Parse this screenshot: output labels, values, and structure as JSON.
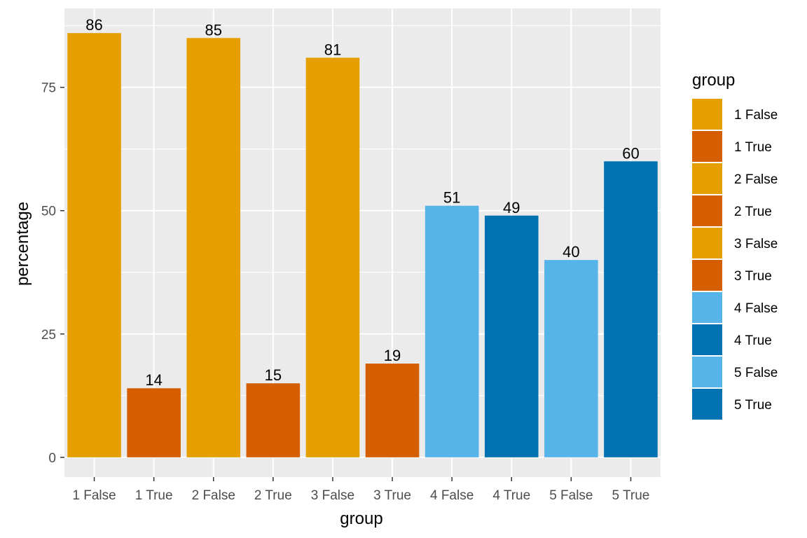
{
  "chart_data": {
    "type": "bar",
    "categories": [
      "1 False",
      "1 True",
      "2 False",
      "2 True",
      "3 False",
      "3 True",
      "4 False",
      "4 True",
      "5 False",
      "5 True"
    ],
    "values": [
      86,
      14,
      85,
      15,
      81,
      19,
      51,
      49,
      40,
      60
    ],
    "data_labels": [
      "86",
      "14",
      "85",
      "15",
      "81",
      "19",
      "51",
      "49",
      "40",
      "60"
    ],
    "colors": [
      "#E69F00",
      "#D55E00",
      "#E69F00",
      "#D55E00",
      "#E69F00",
      "#D55E00",
      "#56B4E9",
      "#0072B2",
      "#56B4E9",
      "#0072B2"
    ],
    "xlabel": "group",
    "ylabel": "percentage",
    "ylim": [
      -4,
      91
    ],
    "yticks": [
      0,
      25,
      50,
      75
    ],
    "ytick_labels": [
      "0",
      "25",
      "50",
      "75"
    ],
    "grid": true,
    "background": "#EBEBEB",
    "legend": {
      "title": "group",
      "position": "right",
      "entries": [
        "1 False",
        "1 True",
        "2 False",
        "2 True",
        "3 False",
        "3 True",
        "4 False",
        "4 True",
        "5 False",
        "5 True"
      ]
    }
  }
}
